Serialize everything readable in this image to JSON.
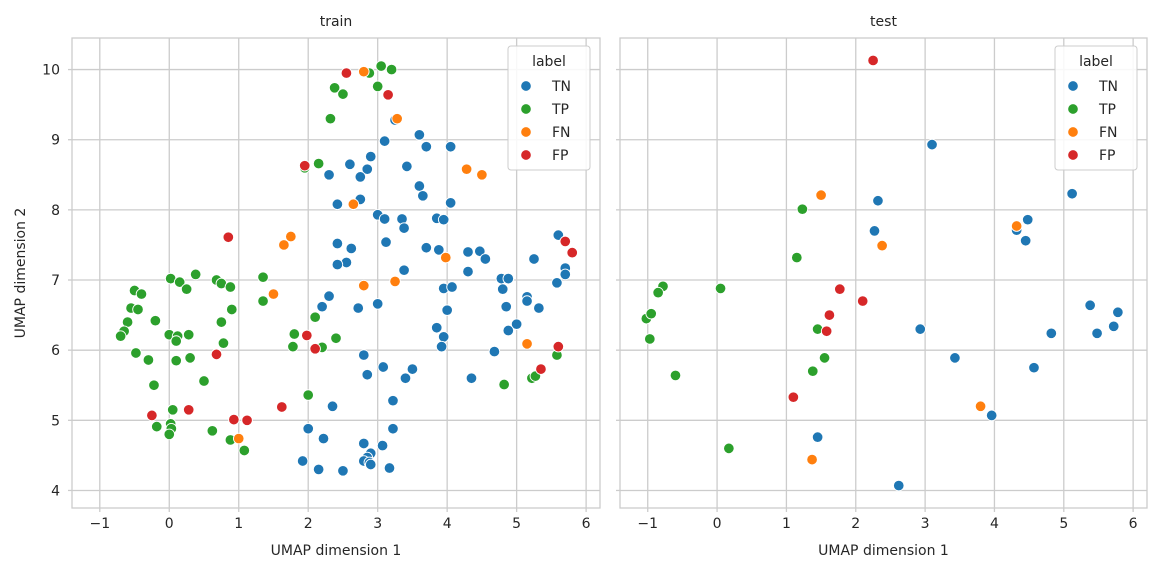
{
  "figure": {
    "y_label": "UMAP dimension 2"
  },
  "chart_data": [
    {
      "type": "scatter",
      "title": "train",
      "xlabel": "UMAP dimension 1",
      "ylabel": "UMAP dimension 2",
      "xlim": [
        -1.4,
        6.2
      ],
      "ylim": [
        3.75,
        10.45
      ],
      "xticks": [
        -1,
        0,
        1,
        2,
        3,
        4,
        5,
        6
      ],
      "yticks": [
        4,
        5,
        6,
        7,
        8,
        9,
        10
      ],
      "grid": true,
      "legend": {
        "title": "label",
        "position": "top-right",
        "entries": [
          "TN",
          "TP",
          "FN",
          "FP"
        ]
      },
      "series": [
        {
          "name": "TN",
          "color": "#1f77b4",
          "points": [
            [
              3.25,
              9.28
            ],
            [
              3.1,
              8.98
            ],
            [
              3.6,
              9.07
            ],
            [
              3.7,
              8.9
            ],
            [
              4.05,
              8.9
            ],
            [
              2.9,
              8.76
            ],
            [
              2.6,
              8.65
            ],
            [
              2.85,
              8.58
            ],
            [
              3.42,
              8.62
            ],
            [
              2.3,
              8.5
            ],
            [
              2.75,
              8.47
            ],
            [
              3.6,
              8.34
            ],
            [
              3.65,
              8.2
            ],
            [
              2.75,
              8.15
            ],
            [
              2.42,
              8.08
            ],
            [
              4.05,
              8.1
            ],
            [
              3.0,
              7.93
            ],
            [
              3.1,
              7.87
            ],
            [
              3.35,
              7.87
            ],
            [
              3.85,
              7.88
            ],
            [
              3.95,
              7.86
            ],
            [
              3.38,
              7.74
            ],
            [
              3.12,
              7.54
            ],
            [
              2.42,
              7.52
            ],
            [
              2.62,
              7.45
            ],
            [
              3.7,
              7.46
            ],
            [
              3.88,
              7.43
            ],
            [
              4.3,
              7.4
            ],
            [
              4.47,
              7.41
            ],
            [
              4.55,
              7.3
            ],
            [
              2.55,
              7.25
            ],
            [
              2.42,
              7.22
            ],
            [
              5.25,
              7.3
            ],
            [
              5.6,
              7.64
            ],
            [
              5.7,
              7.17
            ],
            [
              5.7,
              7.08
            ],
            [
              3.38,
              7.14
            ],
            [
              4.3,
              7.12
            ],
            [
              4.78,
              7.02
            ],
            [
              4.88,
              7.02
            ],
            [
              5.58,
              6.96
            ],
            [
              2.3,
              6.77
            ],
            [
              3.95,
              6.88
            ],
            [
              4.07,
              6.9
            ],
            [
              4.8,
              6.87
            ],
            [
              5.15,
              6.76
            ],
            [
              5.15,
              6.7
            ],
            [
              3.0,
              6.66
            ],
            [
              2.2,
              6.62
            ],
            [
              2.72,
              6.6
            ],
            [
              4.0,
              6.57
            ],
            [
              4.85,
              6.62
            ],
            [
              5.32,
              6.6
            ],
            [
              5.0,
              6.37
            ],
            [
              3.85,
              6.32
            ],
            [
              4.88,
              6.28
            ],
            [
              3.95,
              6.19
            ],
            [
              3.92,
              6.05
            ],
            [
              4.68,
              5.98
            ],
            [
              2.8,
              5.93
            ],
            [
              3.08,
              5.76
            ],
            [
              3.5,
              5.73
            ],
            [
              2.85,
              5.65
            ],
            [
              3.4,
              5.6
            ],
            [
              4.35,
              5.6
            ],
            [
              2.35,
              5.2
            ],
            [
              3.22,
              5.28
            ],
            [
              3.22,
              4.88
            ],
            [
              2.0,
              4.88
            ],
            [
              2.22,
              4.74
            ],
            [
              2.8,
              4.67
            ],
            [
              3.07,
              4.64
            ],
            [
              2.9,
              4.53
            ],
            [
              2.85,
              4.47
            ],
            [
              2.8,
              4.42
            ],
            [
              2.88,
              4.4
            ],
            [
              2.9,
              4.37
            ],
            [
              1.92,
              4.42
            ],
            [
              2.15,
              4.3
            ],
            [
              2.5,
              4.28
            ],
            [
              3.17,
              4.32
            ]
          ]
        },
        {
          "name": "TP",
          "color": "#2ca02c",
          "points": [
            [
              3.05,
              10.05
            ],
            [
              3.2,
              10.0
            ],
            [
              2.8,
              9.97
            ],
            [
              2.88,
              9.95
            ],
            [
              2.38,
              9.74
            ],
            [
              2.5,
              9.65
            ],
            [
              3.0,
              9.76
            ],
            [
              2.32,
              9.3
            ],
            [
              2.15,
              8.66
            ],
            [
              1.95,
              8.6
            ],
            [
              -0.5,
              6.85
            ],
            [
              -0.4,
              6.8
            ],
            [
              0.02,
              7.02
            ],
            [
              0.15,
              6.97
            ],
            [
              0.38,
              7.08
            ],
            [
              0.68,
              7.0
            ],
            [
              0.75,
              6.95
            ],
            [
              0.88,
              6.9
            ],
            [
              0.25,
              6.87
            ],
            [
              1.35,
              7.04
            ],
            [
              -0.6,
              6.4
            ],
            [
              -0.55,
              6.6
            ],
            [
              -0.45,
              6.58
            ],
            [
              -0.65,
              6.27
            ],
            [
              -0.7,
              6.2
            ],
            [
              -0.2,
              6.42
            ],
            [
              0.0,
              6.22
            ],
            [
              0.12,
              6.2
            ],
            [
              0.28,
              6.22
            ],
            [
              0.1,
              6.13
            ],
            [
              0.75,
              6.4
            ],
            [
              0.9,
              6.58
            ],
            [
              1.35,
              6.7
            ],
            [
              2.1,
              6.47
            ],
            [
              0.78,
              6.1
            ],
            [
              1.8,
              6.23
            ],
            [
              2.4,
              6.17
            ],
            [
              1.78,
              6.05
            ],
            [
              2.2,
              6.04
            ],
            [
              -0.48,
              5.96
            ],
            [
              -0.3,
              5.86
            ],
            [
              0.1,
              5.85
            ],
            [
              0.3,
              5.89
            ],
            [
              0.5,
              5.56
            ],
            [
              -0.22,
              5.5
            ],
            [
              2.0,
              5.36
            ],
            [
              0.05,
              5.15
            ],
            [
              -0.18,
              4.91
            ],
            [
              0.02,
              4.95
            ],
            [
              0.03,
              4.88
            ],
            [
              0.0,
              4.8
            ],
            [
              0.62,
              4.85
            ],
            [
              0.88,
              4.72
            ],
            [
              1.08,
              4.57
            ],
            [
              4.82,
              5.51
            ],
            [
              5.22,
              5.6
            ],
            [
              5.27,
              5.63
            ],
            [
              5.58,
              5.93
            ]
          ]
        },
        {
          "name": "FN",
          "color": "#ff7f0e",
          "points": [
            [
              2.8,
              9.97
            ],
            [
              3.28,
              9.3
            ],
            [
              2.65,
              8.08
            ],
            [
              4.28,
              8.58
            ],
            [
              4.5,
              8.5
            ],
            [
              1.75,
              7.62
            ],
            [
              1.65,
              7.5
            ],
            [
              3.98,
              7.32
            ],
            [
              2.8,
              6.92
            ],
            [
              3.25,
              6.98
            ],
            [
              1.5,
              6.8
            ],
            [
              5.15,
              6.09
            ],
            [
              1.0,
              4.74
            ]
          ]
        },
        {
          "name": "FP",
          "color": "#d62728",
          "points": [
            [
              2.55,
              9.95
            ],
            [
              3.15,
              9.64
            ],
            [
              1.95,
              8.63
            ],
            [
              0.85,
              7.61
            ],
            [
              5.7,
              7.55
            ],
            [
              5.8,
              7.39
            ],
            [
              1.98,
              6.21
            ],
            [
              2.1,
              6.02
            ],
            [
              0.68,
              5.94
            ],
            [
              5.6,
              6.05
            ],
            [
              5.35,
              5.73
            ],
            [
              1.62,
              5.19
            ],
            [
              -0.25,
              5.07
            ],
            [
              0.28,
              5.15
            ],
            [
              0.93,
              5.01
            ],
            [
              1.12,
              5.0
            ]
          ]
        }
      ]
    },
    {
      "type": "scatter",
      "title": "test",
      "xlabel": "UMAP dimension 1",
      "ylabel": "",
      "xlim": [
        -1.4,
        6.2
      ],
      "ylim": [
        3.75,
        10.45
      ],
      "xticks": [
        -1,
        0,
        1,
        2,
        3,
        4,
        5,
        6
      ],
      "yticks": [
        4,
        5,
        6,
        7,
        8,
        9,
        10
      ],
      "grid": true,
      "legend": {
        "title": "label",
        "position": "top-right",
        "entries": [
          "TN",
          "TP",
          "FN",
          "FP"
        ]
      },
      "series": [
        {
          "name": "TN",
          "color": "#1f77b4",
          "points": [
            [
              3.1,
              8.93
            ],
            [
              5.12,
              8.23
            ],
            [
              2.32,
              8.13
            ],
            [
              2.27,
              7.7
            ],
            [
              4.32,
              7.71
            ],
            [
              4.48,
              7.86
            ],
            [
              4.45,
              7.56
            ],
            [
              5.38,
              6.64
            ],
            [
              5.78,
              6.54
            ],
            [
              5.72,
              6.34
            ],
            [
              5.48,
              6.24
            ],
            [
              4.82,
              6.24
            ],
            [
              2.93,
              6.3
            ],
            [
              3.43,
              5.89
            ],
            [
              4.57,
              5.75
            ],
            [
              3.96,
              5.07
            ],
            [
              1.45,
              4.76
            ],
            [
              2.62,
              4.07
            ]
          ]
        },
        {
          "name": "TP",
          "color": "#2ca02c",
          "points": [
            [
              1.23,
              8.01
            ],
            [
              1.15,
              7.32
            ],
            [
              -0.78,
              6.91
            ],
            [
              -0.85,
              6.82
            ],
            [
              -1.02,
              6.45
            ],
            [
              -0.95,
              6.52
            ],
            [
              -0.97,
              6.16
            ],
            [
              0.05,
              6.88
            ],
            [
              1.45,
              6.3
            ],
            [
              1.55,
              5.89
            ],
            [
              1.38,
              5.7
            ],
            [
              -0.6,
              5.64
            ],
            [
              0.17,
              4.6
            ]
          ]
        },
        {
          "name": "FN",
          "color": "#ff7f0e",
          "points": [
            [
              1.5,
              8.21
            ],
            [
              4.32,
              7.77
            ],
            [
              2.38,
              7.49
            ],
            [
              3.8,
              5.2
            ],
            [
              1.37,
              4.44
            ]
          ]
        },
        {
          "name": "FP",
          "color": "#d62728",
          "points": [
            [
              2.25,
              10.13
            ],
            [
              1.77,
              6.87
            ],
            [
              2.1,
              6.7
            ],
            [
              1.62,
              6.5
            ],
            [
              1.58,
              6.27
            ],
            [
              1.1,
              5.33
            ]
          ]
        }
      ]
    }
  ]
}
